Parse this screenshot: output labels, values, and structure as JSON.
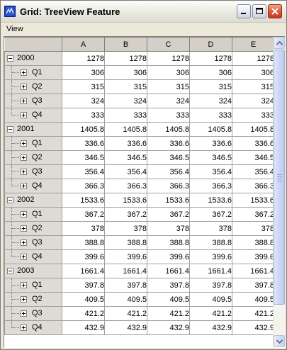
{
  "window": {
    "title": "Grid: TreeView Feature",
    "icon": "grid-app-icon",
    "controls": [
      "minimize-icon",
      "maximize-icon",
      "close-icon"
    ]
  },
  "menu": {
    "items": [
      "View"
    ]
  },
  "grid": {
    "columns": [
      "A",
      "B",
      "C",
      "D",
      "E"
    ],
    "groups": [
      {
        "year": "2000",
        "value": "1278",
        "children": [
          {
            "label": "Q1",
            "value": "306"
          },
          {
            "label": "Q2",
            "value": "315"
          },
          {
            "label": "Q3",
            "value": "324"
          },
          {
            "label": "Q4",
            "value": "333"
          }
        ]
      },
      {
        "year": "2001",
        "value": "1405.8",
        "children": [
          {
            "label": "Q1",
            "value": "336.6"
          },
          {
            "label": "Q2",
            "value": "346.5"
          },
          {
            "label": "Q3",
            "value": "356.4"
          },
          {
            "label": "Q4",
            "value": "366.3"
          }
        ]
      },
      {
        "year": "2002",
        "value": "1533.6",
        "children": [
          {
            "label": "Q1",
            "value": "367.2"
          },
          {
            "label": "Q2",
            "value": "378"
          },
          {
            "label": "Q3",
            "value": "388.8"
          },
          {
            "label": "Q4",
            "value": "399.6"
          }
        ]
      },
      {
        "year": "2003",
        "value": "1661.4",
        "children": [
          {
            "label": "Q1",
            "value": "397.8"
          },
          {
            "label": "Q2",
            "value": "409.5"
          },
          {
            "label": "Q3",
            "value": "421.2"
          },
          {
            "label": "Q4",
            "value": "432.9"
          }
        ]
      }
    ]
  }
}
